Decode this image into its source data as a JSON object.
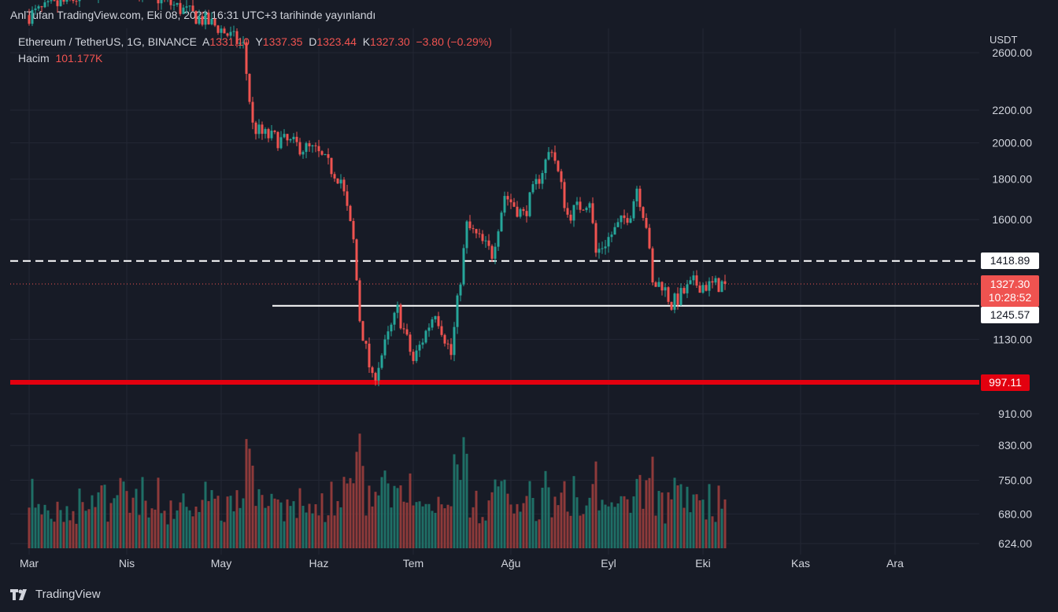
{
  "header": {
    "published_text": "AnlTufan TradingView.com, Eki 08, 2022 16:31 UTC+3 tarihinde yayınlandı"
  },
  "legend": {
    "symbol": "Ethereum / TetherUS, 1G, BINANCE",
    "open_label": "A",
    "open": "1331.10",
    "high_label": "Y",
    "high": "1337.35",
    "low_label": "D",
    "low": "1323.44",
    "close_label": "K",
    "close": "1327.30",
    "change": "−3.80 (−0.29%)",
    "volume_label": "Hacim",
    "volume": "101.177K"
  },
  "axis": {
    "currency": "USDT"
  },
  "price_labels": {
    "dashed_level": "1418.89",
    "support_level": "1245.57",
    "red_level": "997.11",
    "current_price": "1327.30",
    "countdown": "10:28:52"
  },
  "footer": {
    "brand": "TradingView"
  },
  "colors": {
    "up": "#26a69a",
    "down": "#ef5350",
    "background": "#171b26",
    "grid": "#232734",
    "red_line": "#e3000f"
  },
  "chart_data": {
    "type": "candlestick",
    "y_scale": "log",
    "y_ticks": [
      "2600.00",
      "2200.00",
      "2000.00",
      "1800.00",
      "1600.00",
      "1130.00",
      "910.00",
      "830.00",
      "750.00",
      "680.00",
      "624.00"
    ],
    "x_ticks": [
      "Mar",
      "Nis",
      "May",
      "Haz",
      "Tem",
      "Ağu",
      "Eyl",
      "Eki",
      "Kas",
      "Ara"
    ],
    "horizontal_lines": [
      {
        "price": 1418.89,
        "style": "dashed",
        "color": "#ffffff"
      },
      {
        "price": 1245.57,
        "style": "solid",
        "color": "#ffffff"
      },
      {
        "price": 997.11,
        "style": "solid",
        "color": "#e3000f"
      }
    ],
    "anchors": [
      {
        "date": "2022-03-01",
        "price": 2900
      },
      {
        "date": "2022-03-31",
        "price": 3200
      },
      {
        "date": "2022-04-30",
        "price": 2800
      },
      {
        "date": "2022-05-08",
        "price": 2650
      },
      {
        "date": "2022-05-11",
        "price": 2100
      },
      {
        "date": "2022-05-14",
        "price": 2050
      },
      {
        "date": "2022-05-31",
        "price": 1950
      },
      {
        "date": "2022-06-08",
        "price": 1800
      },
      {
        "date": "2022-06-12",
        "price": 1500
      },
      {
        "date": "2022-06-14",
        "price": 1200
      },
      {
        "date": "2022-06-18",
        "price": 1000
      },
      {
        "date": "2022-06-26",
        "price": 1230
      },
      {
        "date": "2022-07-01",
        "price": 1060
      },
      {
        "date": "2022-07-08",
        "price": 1230
      },
      {
        "date": "2022-07-13",
        "price": 1080
      },
      {
        "date": "2022-07-18",
        "price": 1570
      },
      {
        "date": "2022-07-26",
        "price": 1450
      },
      {
        "date": "2022-07-30",
        "price": 1720
      },
      {
        "date": "2022-08-05",
        "price": 1620
      },
      {
        "date": "2022-08-14",
        "price": 1980
      },
      {
        "date": "2022-08-19",
        "price": 1620
      },
      {
        "date": "2022-08-26",
        "price": 1700
      },
      {
        "date": "2022-08-28",
        "price": 1450
      },
      {
        "date": "2022-09-08",
        "price": 1640
      },
      {
        "date": "2022-09-10",
        "price": 1760
      },
      {
        "date": "2022-09-13",
        "price": 1580
      },
      {
        "date": "2022-09-15",
        "price": 1320
      },
      {
        "date": "2022-09-18",
        "price": 1330
      },
      {
        "date": "2022-09-21",
        "price": 1250
      },
      {
        "date": "2022-09-28",
        "price": 1330
      },
      {
        "date": "2022-10-03",
        "price": 1320
      },
      {
        "date": "2022-10-08",
        "price": 1327.3
      }
    ],
    "volume_max_k": 1000
  }
}
